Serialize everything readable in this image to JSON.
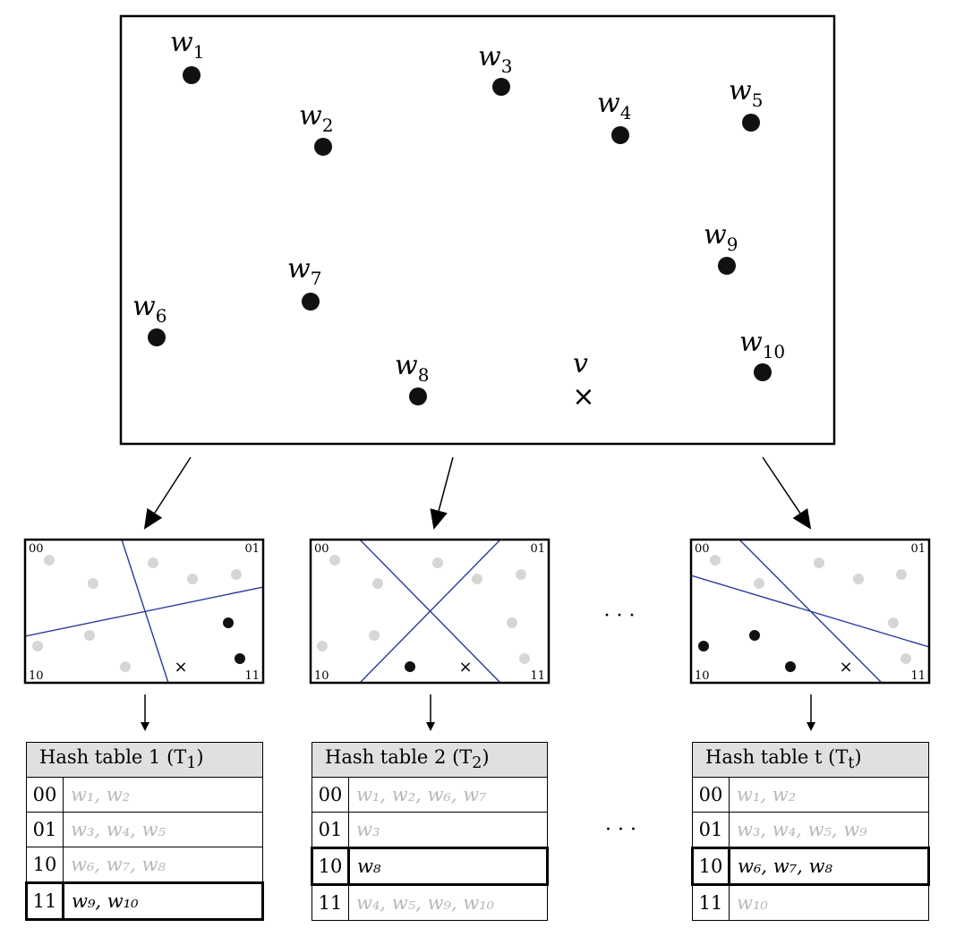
{
  "main_points": [
    {
      "label": "w",
      "sub": "1"
    },
    {
      "label": "w",
      "sub": "2"
    },
    {
      "label": "w",
      "sub": "3"
    },
    {
      "label": "w",
      "sub": "4"
    },
    {
      "label": "w",
      "sub": "5"
    },
    {
      "label": "w",
      "sub": "6"
    },
    {
      "label": "w",
      "sub": "7"
    },
    {
      "label": "w",
      "sub": "8"
    },
    {
      "label": "w",
      "sub": "9"
    },
    {
      "label": "w",
      "sub": "10"
    }
  ],
  "query": {
    "label": "v",
    "marker": "×"
  },
  "partitions": [
    {
      "corner_labels": [
        "00",
        "01",
        "10",
        "11"
      ],
      "cut_color": "#2a3a9a"
    },
    {
      "corner_labels": [
        "00",
        "01",
        "10",
        "11"
      ],
      "cut_color": "#2a3a9a"
    },
    {
      "corner_labels": [
        "00",
        "01",
        "10",
        "11"
      ],
      "cut_color": "#2a3a9a"
    }
  ],
  "ellipsis": "· · ·",
  "tables": [
    {
      "title": "Hash table 1 (T",
      "title_sub": "1",
      "rows": [
        {
          "code": "00",
          "values": "w₁, w₂",
          "highlight": false
        },
        {
          "code": "01",
          "values": "w₃, w₄, w₅",
          "highlight": false
        },
        {
          "code": "10",
          "values": "w₆, w₇, w₈",
          "highlight": false
        },
        {
          "code": "11",
          "values": "w₉, w₁₀",
          "highlight": true
        }
      ]
    },
    {
      "title": "Hash table 2 (T",
      "title_sub": "2",
      "rows": [
        {
          "code": "00",
          "values": "w₁, w₂, w₆, w₇",
          "highlight": false
        },
        {
          "code": "01",
          "values": "w₃",
          "highlight": false
        },
        {
          "code": "10",
          "values": "w₈",
          "highlight": true
        },
        {
          "code": "11",
          "values": "w₄, w₅, w₉, w₁₀",
          "highlight": false
        }
      ]
    },
    {
      "title": "Hash table t (T",
      "title_sub": "t",
      "rows": [
        {
          "code": "00",
          "values": "w₁, w₂",
          "highlight": false
        },
        {
          "code": "01",
          "values": "w₃, w₄, w₅, w₉",
          "highlight": false
        },
        {
          "code": "10",
          "values": "w₆, w₇, w₈",
          "highlight": true
        },
        {
          "code": "11",
          "values": "w₁₀",
          "highlight": false
        }
      ]
    }
  ],
  "colors": {
    "active_point": "#111111",
    "inactive_point": "#d6d6d6",
    "header_bg": "#e0e0e0",
    "inactive_text": "#b8b8b8"
  }
}
